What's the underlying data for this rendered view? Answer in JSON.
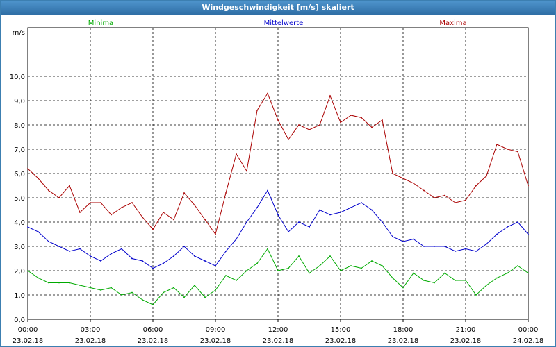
{
  "window": {
    "title": "Windgeschwindigkeit [m/s] skaliert"
  },
  "chart_data": {
    "type": "line",
    "title": "Windgeschwindigkeit [m/s] skaliert",
    "ylabel": "m/s",
    "xlabel": "",
    "ylim": [
      0,
      12
    ],
    "x_range_hours": [
      0,
      24
    ],
    "y_ticks": [
      0,
      1,
      2,
      3,
      4,
      5,
      6,
      7,
      8,
      9,
      10
    ],
    "y_tick_labels": [
      "0,0",
      "1,0",
      "2,0",
      "3,0",
      "4,0",
      "5,0",
      "6,0",
      "7,0",
      "8,0",
      "9,0",
      "10,0"
    ],
    "x_ticks": [
      {
        "hours": 0,
        "time": "00:00",
        "date": "23.02.18"
      },
      {
        "hours": 3,
        "time": "03:00",
        "date": "23.02.18"
      },
      {
        "hours": 6,
        "time": "06:00",
        "date": "23.02.18"
      },
      {
        "hours": 9,
        "time": "09:00",
        "date": "23.02.18"
      },
      {
        "hours": 12,
        "time": "12:00",
        "date": "23.02.18"
      },
      {
        "hours": 15,
        "time": "15:00",
        "date": "23.02.18"
      },
      {
        "hours": 18,
        "time": "18:00",
        "date": "23.02.18"
      },
      {
        "hours": 21,
        "time": "21:00",
        "date": "23.02.18"
      },
      {
        "hours": 24,
        "time": "00:00",
        "date": "24.02.18"
      }
    ],
    "series": [
      {
        "name": "Minima",
        "color": "#00aa00",
        "legend_position": "left",
        "x": [
          0,
          0.5,
          1,
          1.5,
          2,
          2.5,
          3,
          3.5,
          4,
          4.5,
          5,
          5.5,
          6,
          6.5,
          7,
          7.5,
          8,
          8.5,
          9,
          9.5,
          10,
          10.5,
          11,
          11.5,
          12,
          12.5,
          13,
          13.5,
          14,
          14.5,
          15,
          15.5,
          16,
          16.5,
          17,
          17.5,
          18,
          18.5,
          19,
          19.5,
          20,
          20.5,
          21,
          21.5,
          22,
          22.5,
          23,
          23.5,
          24
        ],
        "values": [
          2.0,
          1.7,
          1.5,
          1.5,
          1.5,
          1.4,
          1.3,
          1.2,
          1.3,
          1.0,
          1.1,
          0.8,
          0.6,
          1.1,
          1.3,
          0.9,
          1.4,
          0.9,
          1.2,
          1.8,
          1.6,
          2.0,
          2.3,
          2.9,
          2.0,
          2.1,
          2.6,
          1.9,
          2.2,
          2.6,
          2.0,
          2.2,
          2.1,
          2.4,
          2.2,
          1.7,
          1.3,
          1.9,
          1.6,
          1.5,
          1.9,
          1.6,
          1.6,
          1.0,
          1.4,
          1.7,
          1.9,
          2.2,
          1.9
        ]
      },
      {
        "name": "Mittelwerte",
        "color": "#0000cc",
        "legend_position": "center",
        "x": [
          0,
          0.5,
          1,
          1.5,
          2,
          2.5,
          3,
          3.5,
          4,
          4.5,
          5,
          5.5,
          6,
          6.5,
          7,
          7.5,
          8,
          8.5,
          9,
          9.5,
          10,
          10.5,
          11,
          11.5,
          12,
          12.5,
          13,
          13.5,
          14,
          14.5,
          15,
          15.5,
          16,
          16.5,
          17,
          17.5,
          18,
          18.5,
          19,
          19.5,
          20,
          20.5,
          21,
          21.5,
          22,
          22.5,
          23,
          23.5,
          24
        ],
        "values": [
          3.8,
          3.6,
          3.2,
          3.0,
          2.8,
          2.9,
          2.6,
          2.4,
          2.7,
          2.9,
          2.5,
          2.4,
          2.1,
          2.3,
          2.6,
          3.0,
          2.6,
          2.4,
          2.2,
          2.8,
          3.3,
          4.0,
          4.6,
          5.3,
          4.3,
          3.6,
          4.0,
          3.8,
          4.5,
          4.3,
          4.4,
          4.6,
          4.8,
          4.5,
          4.0,
          3.4,
          3.2,
          3.3,
          3.0,
          3.0,
          3.0,
          2.8,
          2.9,
          2.8,
          3.1,
          3.5,
          3.8,
          4.0,
          3.5
        ]
      },
      {
        "name": "Maxima",
        "color": "#aa0000",
        "legend_position": "right",
        "x": [
          0,
          0.5,
          1,
          1.5,
          2,
          2.5,
          3,
          3.5,
          4,
          4.5,
          5,
          5.5,
          6,
          6.5,
          7,
          7.5,
          8,
          8.5,
          9,
          9.5,
          10,
          10.5,
          11,
          11.5,
          12,
          12.5,
          13,
          13.5,
          14,
          14.5,
          15,
          15.5,
          16,
          16.5,
          17,
          17.5,
          18,
          18.5,
          19,
          19.5,
          20,
          20.5,
          21,
          21.5,
          22,
          22.5,
          23,
          23.5,
          24
        ],
        "values": [
          6.2,
          5.8,
          5.3,
          5.0,
          5.5,
          4.4,
          4.8,
          4.8,
          4.3,
          4.6,
          4.8,
          4.2,
          3.7,
          4.4,
          4.1,
          5.2,
          4.7,
          4.1,
          3.5,
          5.2,
          6.8,
          6.1,
          8.6,
          9.3,
          8.2,
          7.4,
          8.0,
          7.8,
          8.0,
          9.2,
          8.1,
          8.4,
          8.3,
          7.9,
          8.2,
          6.0,
          5.8,
          5.6,
          5.3,
          5.0,
          5.1,
          4.8,
          4.9,
          5.5,
          5.9,
          7.2,
          7.0,
          6.9,
          5.5
        ]
      }
    ],
    "grid": true
  }
}
